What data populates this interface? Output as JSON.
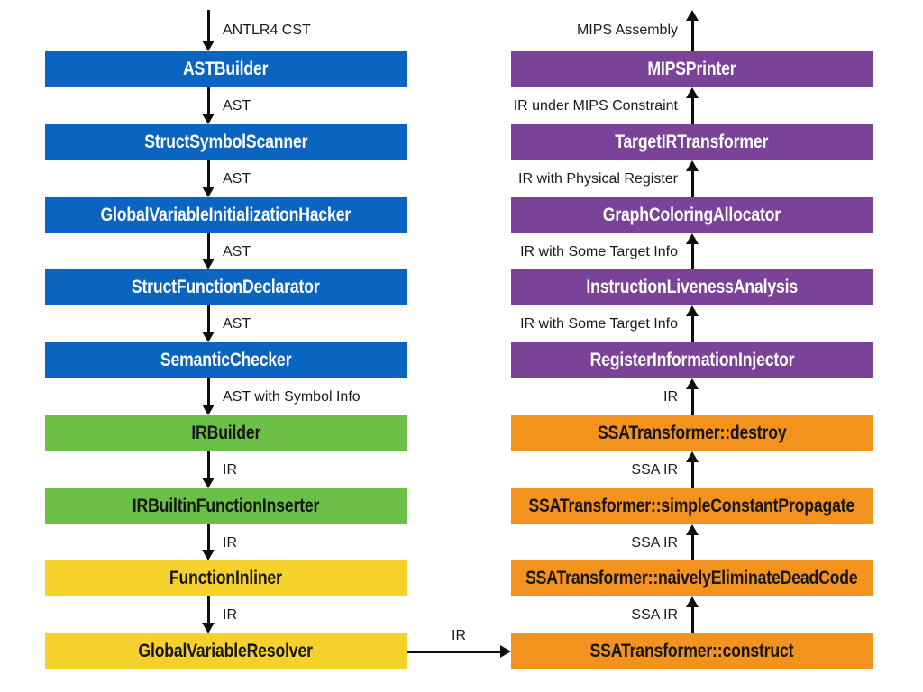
{
  "diagram": {
    "title": "compiler-pipeline",
    "colors": {
      "blue": "#0b64bf",
      "green": "#6cbf47",
      "yellow": "#f5d22b",
      "orange": "#f3921c",
      "purple": "#7a4397",
      "arrow": "#0d0d0d",
      "background": "#ffffff"
    },
    "left_column": {
      "input_label": "ANTLR4 CST",
      "flow_direction": "top-down",
      "nodes": [
        {
          "label": "ASTBuilder",
          "color": "blue"
        },
        {
          "label": "StructSymbolScanner",
          "color": "blue"
        },
        {
          "label": "GlobalVariableInitializationHacker",
          "color": "blue"
        },
        {
          "label": "StructFunctionDeclarator",
          "color": "blue"
        },
        {
          "label": "SemanticChecker",
          "color": "blue"
        },
        {
          "label": "IRBuilder",
          "color": "green"
        },
        {
          "label": "IRBuiltinFunctionInserter",
          "color": "green"
        },
        {
          "label": "FunctionInliner",
          "color": "yellow"
        },
        {
          "label": "GlobalVariableResolver",
          "color": "yellow"
        }
      ],
      "edge_labels": [
        "AST",
        "AST",
        "AST",
        "AST",
        "AST with Symbol Info",
        "IR",
        "IR",
        "IR"
      ]
    },
    "right_column": {
      "output_label": "MIPS Assembly",
      "flow_direction": "bottom-up",
      "nodes": [
        {
          "label": "MIPSPrinter",
          "color": "purple"
        },
        {
          "label": "TargetIRTransformer",
          "color": "purple"
        },
        {
          "label": "GraphColoringAllocator",
          "color": "purple"
        },
        {
          "label": "InstructionLivenessAnalysis",
          "color": "purple"
        },
        {
          "label": "RegisterInformationInjector",
          "color": "purple"
        },
        {
          "label": "SSATransformer::destroy",
          "color": "orange"
        },
        {
          "label": "SSATransformer::simpleConstantPropagate",
          "color": "orange"
        },
        {
          "label": "SSATransformer::naivelyEliminateDeadCode",
          "color": "orange"
        },
        {
          "label": "SSATransformer::construct",
          "color": "orange"
        }
      ],
      "edge_labels": [
        "IR under MIPS Constraint",
        "IR with Physical Register",
        "IR with Some Target Info",
        "IR with Some Target Info",
        "IR",
        "SSA IR",
        "SSA IR",
        "SSA IR"
      ]
    },
    "cross_edge_label": "IR"
  }
}
